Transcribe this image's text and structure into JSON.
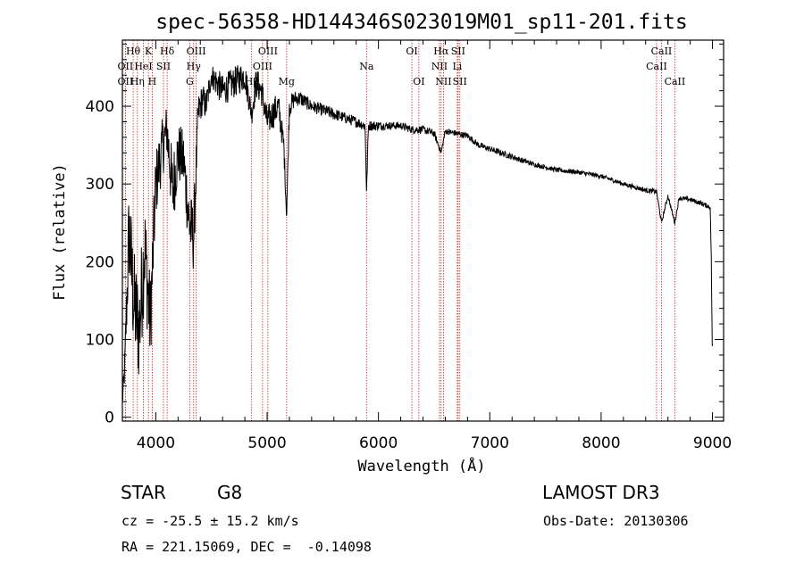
{
  "chart_data": {
    "type": "line",
    "title": "spec-56358-HD144346S023019M01_sp11-201.fits",
    "xlabel": "Wavelength (Å)",
    "ylabel": "Flux (relative)",
    "xlim": [
      3700,
      9100
    ],
    "ylim": [
      -5,
      485
    ],
    "xticks": [
      4000,
      5000,
      6000,
      7000,
      8000,
      9000
    ],
    "yticks": [
      0,
      100,
      200,
      300,
      400
    ],
    "spectrum_anchors": {
      "x": [
        3700,
        3720,
        3760,
        3800,
        3850,
        3900,
        3950,
        4000,
        4050,
        4100,
        4150,
        4200,
        4250,
        4300,
        4340,
        4380,
        4420,
        4450,
        4500,
        4550,
        4600,
        4700,
        4800,
        4861,
        4900,
        4950,
        5000,
        5050,
        5100,
        5150,
        5175,
        5200,
        5250,
        5300,
        5400,
        5500,
        5600,
        5700,
        5800,
        5880,
        5893,
        5910,
        6000,
        6100,
        6200,
        6300,
        6400,
        6500,
        6563,
        6600,
        6700,
        6800,
        6900,
        7000,
        7200,
        7400,
        7600,
        7800,
        8000,
        8200,
        8400,
        8498,
        8542,
        8600,
        8662,
        8700,
        8800,
        8900,
        8980,
        8990,
        9000
      ],
      "y": [
        20,
        60,
        240,
        150,
        110,
        220,
        120,
        300,
        340,
        370,
        290,
        340,
        330,
        250,
        230,
        390,
        410,
        400,
        440,
        430,
        420,
        430,
        440,
        390,
        430,
        420,
        380,
        390,
        400,
        350,
        260,
        400,
        410,
        410,
        400,
        395,
        390,
        385,
        380,
        375,
        290,
        375,
        375,
        375,
        375,
        370,
        370,
        365,
        340,
        368,
        365,
        362,
        350,
        345,
        335,
        325,
        318,
        315,
        310,
        300,
        292,
        290,
        250,
        285,
        250,
        282,
        280,
        275,
        270,
        200,
        60
      ],
      "noise": [
        10,
        20,
        70,
        70,
        70,
        70,
        60,
        45,
        40,
        35,
        50,
        40,
        40,
        45,
        45,
        25,
        20,
        20,
        15,
        20,
        20,
        20,
        20,
        15,
        20,
        20,
        20,
        20,
        20,
        15,
        10,
        15,
        10,
        10,
        8,
        8,
        8,
        7,
        7,
        7,
        5,
        7,
        6,
        5,
        5,
        5,
        5,
        5,
        3,
        4,
        4,
        4,
        4,
        4,
        4,
        3,
        3,
        3,
        3,
        3,
        3,
        3,
        3,
        3,
        3,
        3,
        3,
        3,
        3,
        5,
        5
      ]
    },
    "spectral_lines": [
      {
        "label": "Hθ",
        "wavelength": 3797,
        "row": 1
      },
      {
        "label": "OII",
        "wavelength": 3727,
        "row": 2
      },
      {
        "label": "OII",
        "wavelength": 3727,
        "row": 3
      },
      {
        "label": "K",
        "wavelength": 3934,
        "row": 1
      },
      {
        "label": "HeI",
        "wavelength": 3889,
        "row": 2
      },
      {
        "label": "Hη",
        "wavelength": 3835,
        "row": 3
      },
      {
        "label": "H",
        "wavelength": 3968,
        "row": 3
      },
      {
        "label": "Hδ",
        "wavelength": 4102,
        "row": 1
      },
      {
        "label": "SII",
        "wavelength": 4069,
        "row": 2
      },
      {
        "label": "OIII",
        "wavelength": 4363,
        "row": 1
      },
      {
        "label": "Hγ",
        "wavelength": 4340,
        "row": 2
      },
      {
        "label": "G",
        "wavelength": 4305,
        "row": 3
      },
      {
        "label": "OIII",
        "wavelength": 5007,
        "row": 1
      },
      {
        "label": "OIII",
        "wavelength": 4959,
        "row": 2
      },
      {
        "label": "Hβ",
        "wavelength": 4861,
        "row": 3
      },
      {
        "label": "Mg",
        "wavelength": 5175,
        "row": 3
      },
      {
        "label": "Na",
        "wavelength": 5893,
        "row": 2
      },
      {
        "label": "OI",
        "wavelength": 6300,
        "row": 1
      },
      {
        "label": "OI",
        "wavelength": 6363,
        "row": 3
      },
      {
        "label": "Hα",
        "wavelength": 6563,
        "row": 1
      },
      {
        "label": "SII",
        "wavelength": 6716,
        "row": 1
      },
      {
        "label": "NII",
        "wavelength": 6548,
        "row": 2
      },
      {
        "label": "Li",
        "wavelength": 6708,
        "row": 2
      },
      {
        "label": "NII",
        "wavelength": 6584,
        "row": 3
      },
      {
        "label": "SII",
        "wavelength": 6731,
        "row": 3
      },
      {
        "label": "CaII",
        "wavelength": 8542,
        "row": 1
      },
      {
        "label": "CaII",
        "wavelength": 8498,
        "row": 2
      },
      {
        "label": "CaII",
        "wavelength": 8662,
        "row": 3
      }
    ],
    "line_color": "#cc2222"
  },
  "info": {
    "class": "STAR",
    "subclass": "G8",
    "survey": "LAMOST DR3",
    "redshift": "cz = -25.5 ± 15.2 km/s",
    "obs_date": "Obs-Date: 20130306",
    "coords": "RA = 221.15069, DEC =  -0.14098"
  }
}
